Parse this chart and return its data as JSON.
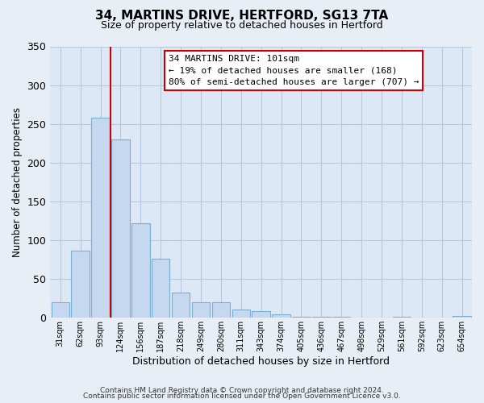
{
  "title": "34, MARTINS DRIVE, HERTFORD, SG13 7TA",
  "subtitle": "Size of property relative to detached houses in Hertford",
  "xlabel": "Distribution of detached houses by size in Hertford",
  "ylabel": "Number of detached properties",
  "bar_values": [
    20,
    87,
    258,
    230,
    122,
    76,
    33,
    20,
    20,
    11,
    9,
    4,
    1,
    1,
    1,
    0,
    0,
    1,
    0,
    0,
    2
  ],
  "bin_labels": [
    "31sqm",
    "62sqm",
    "93sqm",
    "124sqm",
    "156sqm",
    "187sqm",
    "218sqm",
    "249sqm",
    "280sqm",
    "311sqm",
    "343sqm",
    "374sqm",
    "405sqm",
    "436sqm",
    "467sqm",
    "498sqm",
    "529sqm",
    "561sqm",
    "592sqm",
    "623sqm",
    "654sqm"
  ],
  "bar_color": "#c5d8ef",
  "bar_edge_color": "#7aafd4",
  "vline_x": 2.5,
  "vline_color": "#cc0000",
  "ylim": [
    0,
    350
  ],
  "yticks": [
    0,
    50,
    100,
    150,
    200,
    250,
    300,
    350
  ],
  "annotation_text": "34 MARTINS DRIVE: 101sqm\n← 19% of detached houses are smaller (168)\n80% of semi-detached houses are larger (707) →",
  "annotation_box_color": "#ffffff",
  "annotation_box_edge": "#cc0000",
  "footer1": "Contains HM Land Registry data © Crown copyright and database right 2024.",
  "footer2": "Contains public sector information licensed under the Open Government Licence v3.0.",
  "background_color": "#e8eef5",
  "plot_bg_color": "#dce8f5",
  "grid_color": "#b8c8dc"
}
